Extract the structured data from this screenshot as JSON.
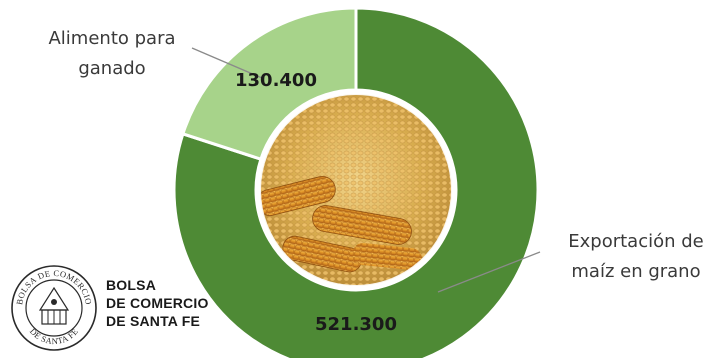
{
  "chart_data": {
    "type": "pie",
    "variant": "donut",
    "title": "",
    "unit": "",
    "slices": [
      {
        "label": "Exportación de maíz en grano",
        "value": 521300,
        "value_label": "521.300",
        "color": "#4e8a35"
      },
      {
        "label": "Alimento para ganado",
        "value": 130400,
        "value_label": "130.400",
        "color": "#a7d38a"
      }
    ],
    "center_image": "corn-kernels-and-cobs-photo",
    "legend": "none"
  },
  "slice_labels": {
    "export_line1": "Exportación de",
    "export_line2": "maíz en grano",
    "feed_line1": "Alimento para",
    "feed_line2": "ganado"
  },
  "logo": {
    "line1": "BOLSA",
    "line2": "DE COMERCIO",
    "line3": "DE SANTA FE",
    "seal_text_top": "BOLSA DE COMERCIO",
    "seal_text_bottom": "DE SANTA FE",
    "icon": "seal-emblem-icon"
  }
}
